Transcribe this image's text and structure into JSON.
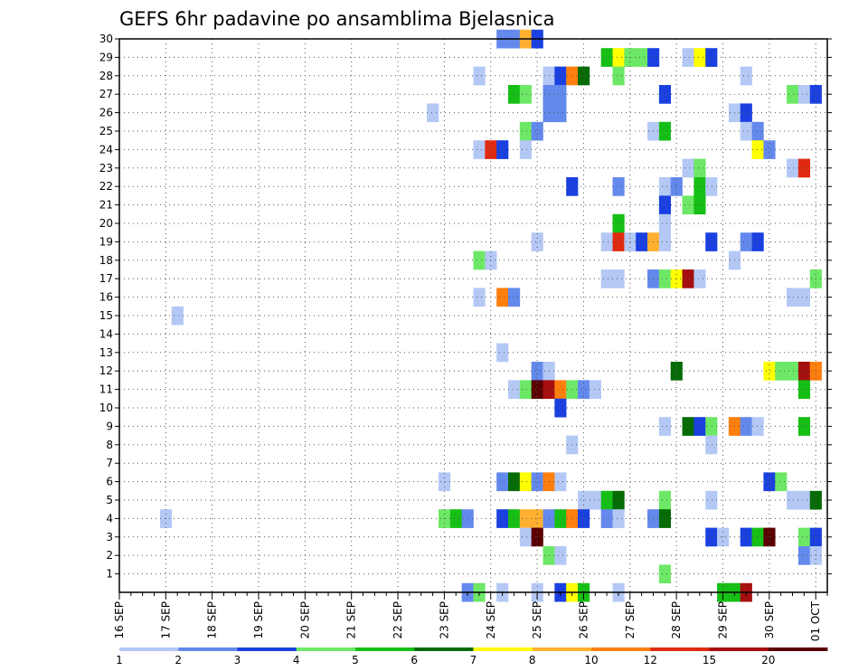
{
  "chart_data": {
    "type": "heatmap",
    "title": "GEFS 6hr padavine po ansamblima Bjelasnica",
    "xlabel": "",
    "ylabel": "",
    "x_tick_labels": [
      "16 SEP",
      "17 SEP",
      "18 SEP",
      "19 SEP",
      "20 SEP",
      "21 SEP",
      "22 SEP",
      "23 SEP",
      "24 SEP",
      "25 SEP",
      "26 SEP",
      "27 SEP",
      "28 SEP",
      "29 SEP",
      "30 SEP",
      "01 OCT"
    ],
    "x_unit": "6-hour step from 16 SEP 00Z",
    "x_range": [
      0,
      61
    ],
    "y_tick_labels": [
      "1",
      "2",
      "3",
      "4",
      "5",
      "6",
      "7",
      "8",
      "9",
      "10",
      "11",
      "12",
      "13",
      "14",
      "15",
      "16",
      "17",
      "18",
      "19",
      "20",
      "21",
      "22",
      "23",
      "24",
      "25",
      "26",
      "27",
      "28",
      "29",
      "30"
    ],
    "y_range": [
      0,
      30
    ],
    "grid": true,
    "colorbar": {
      "placement": "bottom",
      "tick_labels": [
        "1",
        "2",
        "3",
        "4",
        "5",
        "6",
        "7",
        "8",
        "10",
        "12",
        "15",
        "20"
      ],
      "colors": [
        "#b4c8f5",
        "#6489ed",
        "#1a40e0",
        "#6de866",
        "#16bf16",
        "#056b05",
        "#ffff00",
        "#ffb030",
        "#ff7f0e",
        "#e02a10",
        "#a50f0f",
        "#5a0000"
      ]
    },
    "cells": [
      {
        "member": 30,
        "step": 33,
        "level": 1
      },
      {
        "member": 30,
        "step": 34,
        "level": 1
      },
      {
        "member": 30,
        "step": 35,
        "level": 7
      },
      {
        "member": 30,
        "step": 36,
        "level": 2
      },
      {
        "member": 29,
        "step": 42,
        "level": 4
      },
      {
        "member": 29,
        "step": 43,
        "level": 6
      },
      {
        "member": 29,
        "step": 44,
        "level": 3
      },
      {
        "member": 29,
        "step": 45,
        "level": 3
      },
      {
        "member": 29,
        "step": 46,
        "level": 2
      },
      {
        "member": 29,
        "step": 49,
        "level": 0
      },
      {
        "member": 29,
        "step": 50,
        "level": 6
      },
      {
        "member": 29,
        "step": 51,
        "level": 2
      },
      {
        "member": 28,
        "step": 31,
        "level": 0
      },
      {
        "member": 28,
        "step": 37,
        "level": 0
      },
      {
        "member": 28,
        "step": 38,
        "level": 2
      },
      {
        "member": 28,
        "step": 39,
        "level": 8
      },
      {
        "member": 28,
        "step": 40,
        "level": 5
      },
      {
        "member": 28,
        "step": 43,
        "level": 3
      },
      {
        "member": 28,
        "step": 54,
        "level": 0
      },
      {
        "member": 27,
        "step": 34,
        "level": 4
      },
      {
        "member": 27,
        "step": 35,
        "level": 3
      },
      {
        "member": 27,
        "step": 37,
        "level": 1
      },
      {
        "member": 27,
        "step": 38,
        "level": 1
      },
      {
        "member": 27,
        "step": 47,
        "level": 2
      },
      {
        "member": 27,
        "step": 58,
        "level": 3
      },
      {
        "member": 27,
        "step": 59,
        "level": 0
      },
      {
        "member": 27,
        "step": 60,
        "level": 2
      },
      {
        "member": 26,
        "step": 27,
        "level": 0
      },
      {
        "member": 26,
        "step": 37,
        "level": 1
      },
      {
        "member": 26,
        "step": 38,
        "level": 1
      },
      {
        "member": 26,
        "step": 53,
        "level": 0
      },
      {
        "member": 26,
        "step": 54,
        "level": 2
      },
      {
        "member": 25,
        "step": 35,
        "level": 3
      },
      {
        "member": 25,
        "step": 36,
        "level": 1
      },
      {
        "member": 25,
        "step": 46,
        "level": 0
      },
      {
        "member": 25,
        "step": 47,
        "level": 4
      },
      {
        "member": 25,
        "step": 54,
        "level": 0
      },
      {
        "member": 25,
        "step": 55,
        "level": 1
      },
      {
        "member": 24,
        "step": 31,
        "level": 0
      },
      {
        "member": 24,
        "step": 32,
        "level": 9
      },
      {
        "member": 24,
        "step": 33,
        "level": 2
      },
      {
        "member": 24,
        "step": 35,
        "level": 0
      },
      {
        "member": 24,
        "step": 55,
        "level": 6
      },
      {
        "member": 24,
        "step": 56,
        "level": 1
      },
      {
        "member": 23,
        "step": 49,
        "level": 0
      },
      {
        "member": 23,
        "step": 50,
        "level": 3
      },
      {
        "member": 23,
        "step": 58,
        "level": 0
      },
      {
        "member": 23,
        "step": 59,
        "level": 9
      },
      {
        "member": 22,
        "step": 39,
        "level": 2
      },
      {
        "member": 22,
        "step": 43,
        "level": 1
      },
      {
        "member": 22,
        "step": 47,
        "level": 0
      },
      {
        "member": 22,
        "step": 48,
        "level": 1
      },
      {
        "member": 22,
        "step": 50,
        "level": 4
      },
      {
        "member": 22,
        "step": 51,
        "level": 0
      },
      {
        "member": 21,
        "step": 47,
        "level": 2
      },
      {
        "member": 21,
        "step": 49,
        "level": 3
      },
      {
        "member": 21,
        "step": 50,
        "level": 4
      },
      {
        "member": 20,
        "step": 43,
        "level": 4
      },
      {
        "member": 20,
        "step": 47,
        "level": 0
      },
      {
        "member": 19,
        "step": 36,
        "level": 0
      },
      {
        "member": 19,
        "step": 42,
        "level": 0
      },
      {
        "member": 19,
        "step": 43,
        "level": 9
      },
      {
        "member": 19,
        "step": 44,
        "level": 0
      },
      {
        "member": 19,
        "step": 45,
        "level": 2
      },
      {
        "member": 19,
        "step": 46,
        "level": 7
      },
      {
        "member": 19,
        "step": 47,
        "level": 0
      },
      {
        "member": 19,
        "step": 51,
        "level": 2
      },
      {
        "member": 19,
        "step": 54,
        "level": 1
      },
      {
        "member": 19,
        "step": 55,
        "level": 2
      },
      {
        "member": 18,
        "step": 31,
        "level": 3
      },
      {
        "member": 18,
        "step": 32,
        "level": 0
      },
      {
        "member": 18,
        "step": 53,
        "level": 0
      },
      {
        "member": 17,
        "step": 42,
        "level": 0
      },
      {
        "member": 17,
        "step": 43,
        "level": 0
      },
      {
        "member": 17,
        "step": 46,
        "level": 1
      },
      {
        "member": 17,
        "step": 47,
        "level": 3
      },
      {
        "member": 17,
        "step": 48,
        "level": 6
      },
      {
        "member": 17,
        "step": 49,
        "level": 10
      },
      {
        "member": 17,
        "step": 50,
        "level": 0
      },
      {
        "member": 17,
        "step": 60,
        "level": 3
      },
      {
        "member": 16,
        "step": 31,
        "level": 0
      },
      {
        "member": 16,
        "step": 33,
        "level": 8
      },
      {
        "member": 16,
        "step": 34,
        "level": 1
      },
      {
        "member": 16,
        "step": 58,
        "level": 0
      },
      {
        "member": 16,
        "step": 59,
        "level": 0
      },
      {
        "member": 15,
        "step": 5,
        "level": 0
      },
      {
        "member": 13,
        "step": 33,
        "level": 0
      },
      {
        "member": 12,
        "step": 36,
        "level": 1
      },
      {
        "member": 12,
        "step": 37,
        "level": 0
      },
      {
        "member": 12,
        "step": 48,
        "level": 5
      },
      {
        "member": 12,
        "step": 56,
        "level": 6
      },
      {
        "member": 12,
        "step": 57,
        "level": 3
      },
      {
        "member": 12,
        "step": 58,
        "level": 3
      },
      {
        "member": 12,
        "step": 59,
        "level": 10
      },
      {
        "member": 12,
        "step": 60,
        "level": 8
      },
      {
        "member": 11,
        "step": 34,
        "level": 0
      },
      {
        "member": 11,
        "step": 35,
        "level": 3
      },
      {
        "member": 11,
        "step": 36,
        "level": 11
      },
      {
        "member": 11,
        "step": 37,
        "level": 10
      },
      {
        "member": 11,
        "step": 38,
        "level": 8
      },
      {
        "member": 11,
        "step": 39,
        "level": 3
      },
      {
        "member": 11,
        "step": 40,
        "level": 1
      },
      {
        "member": 11,
        "step": 41,
        "level": 0
      },
      {
        "member": 11,
        "step": 59,
        "level": 4
      },
      {
        "member": 10,
        "step": 38,
        "level": 2
      },
      {
        "member": 9,
        "step": 47,
        "level": 0
      },
      {
        "member": 9,
        "step": 49,
        "level": 5
      },
      {
        "member": 9,
        "step": 50,
        "level": 2
      },
      {
        "member": 9,
        "step": 51,
        "level": 3
      },
      {
        "member": 9,
        "step": 53,
        "level": 8
      },
      {
        "member": 9,
        "step": 54,
        "level": 1
      },
      {
        "member": 9,
        "step": 55,
        "level": 0
      },
      {
        "member": 9,
        "step": 59,
        "level": 4
      },
      {
        "member": 8,
        "step": 39,
        "level": 0
      },
      {
        "member": 8,
        "step": 51,
        "level": 0
      },
      {
        "member": 6,
        "step": 28,
        "level": 0
      },
      {
        "member": 6,
        "step": 33,
        "level": 1
      },
      {
        "member": 6,
        "step": 34,
        "level": 5
      },
      {
        "member": 6,
        "step": 35,
        "level": 6
      },
      {
        "member": 6,
        "step": 36,
        "level": 1
      },
      {
        "member": 6,
        "step": 37,
        "level": 8
      },
      {
        "member": 6,
        "step": 38,
        "level": 0
      },
      {
        "member": 6,
        "step": 56,
        "level": 2
      },
      {
        "member": 6,
        "step": 57,
        "level": 3
      },
      {
        "member": 5,
        "step": 40,
        "level": 0
      },
      {
        "member": 5,
        "step": 41,
        "level": 0
      },
      {
        "member": 5,
        "step": 42,
        "level": 4
      },
      {
        "member": 5,
        "step": 43,
        "level": 5
      },
      {
        "member": 5,
        "step": 47,
        "level": 3
      },
      {
        "member": 5,
        "step": 51,
        "level": 0
      },
      {
        "member": 5,
        "step": 58,
        "level": 0
      },
      {
        "member": 5,
        "step": 59,
        "level": 0
      },
      {
        "member": 5,
        "step": 60,
        "level": 5
      },
      {
        "member": 4,
        "step": 4,
        "level": 0
      },
      {
        "member": 4,
        "step": 28,
        "level": 3
      },
      {
        "member": 4,
        "step": 29,
        "level": 4
      },
      {
        "member": 4,
        "step": 30,
        "level": 1
      },
      {
        "member": 4,
        "step": 33,
        "level": 2
      },
      {
        "member": 4,
        "step": 34,
        "level": 4
      },
      {
        "member": 4,
        "step": 35,
        "level": 7
      },
      {
        "member": 4,
        "step": 36,
        "level": 7
      },
      {
        "member": 4,
        "step": 37,
        "level": 1
      },
      {
        "member": 4,
        "step": 38,
        "level": 4
      },
      {
        "member": 4,
        "step": 39,
        "level": 8
      },
      {
        "member": 4,
        "step": 40,
        "level": 2
      },
      {
        "member": 4,
        "step": 42,
        "level": 1
      },
      {
        "member": 4,
        "step": 43,
        "level": 0
      },
      {
        "member": 4,
        "step": 46,
        "level": 1
      },
      {
        "member": 4,
        "step": 47,
        "level": 5
      },
      {
        "member": 3,
        "step": 35,
        "level": 0
      },
      {
        "member": 3,
        "step": 36,
        "level": 11
      },
      {
        "member": 3,
        "step": 51,
        "level": 2
      },
      {
        "member": 3,
        "step": 52,
        "level": 0
      },
      {
        "member": 3,
        "step": 54,
        "level": 2
      },
      {
        "member": 3,
        "step": 55,
        "level": 4
      },
      {
        "member": 3,
        "step": 56,
        "level": 11
      },
      {
        "member": 3,
        "step": 59,
        "level": 3
      },
      {
        "member": 3,
        "step": 60,
        "level": 2
      },
      {
        "member": 2,
        "step": 37,
        "level": 3
      },
      {
        "member": 2,
        "step": 38,
        "level": 0
      },
      {
        "member": 2,
        "step": 59,
        "level": 1
      },
      {
        "member": 2,
        "step": 60,
        "level": 0
      },
      {
        "member": 1,
        "step": 47,
        "level": 3
      },
      {
        "member": 0,
        "step": 30,
        "level": 1
      },
      {
        "member": 0,
        "step": 31,
        "level": 3
      },
      {
        "member": 0,
        "step": 33,
        "level": 0
      },
      {
        "member": 0,
        "step": 36,
        "level": 0
      },
      {
        "member": 0,
        "step": 38,
        "level": 2
      },
      {
        "member": 0,
        "step": 39,
        "level": 6
      },
      {
        "member": 0,
        "step": 40,
        "level": 4
      },
      {
        "member": 0,
        "step": 43,
        "level": 0
      },
      {
        "member": 0,
        "step": 52,
        "level": 4
      },
      {
        "member": 0,
        "step": 53,
        "level": 4
      },
      {
        "member": 0,
        "step": 54,
        "level": 10
      }
    ]
  }
}
